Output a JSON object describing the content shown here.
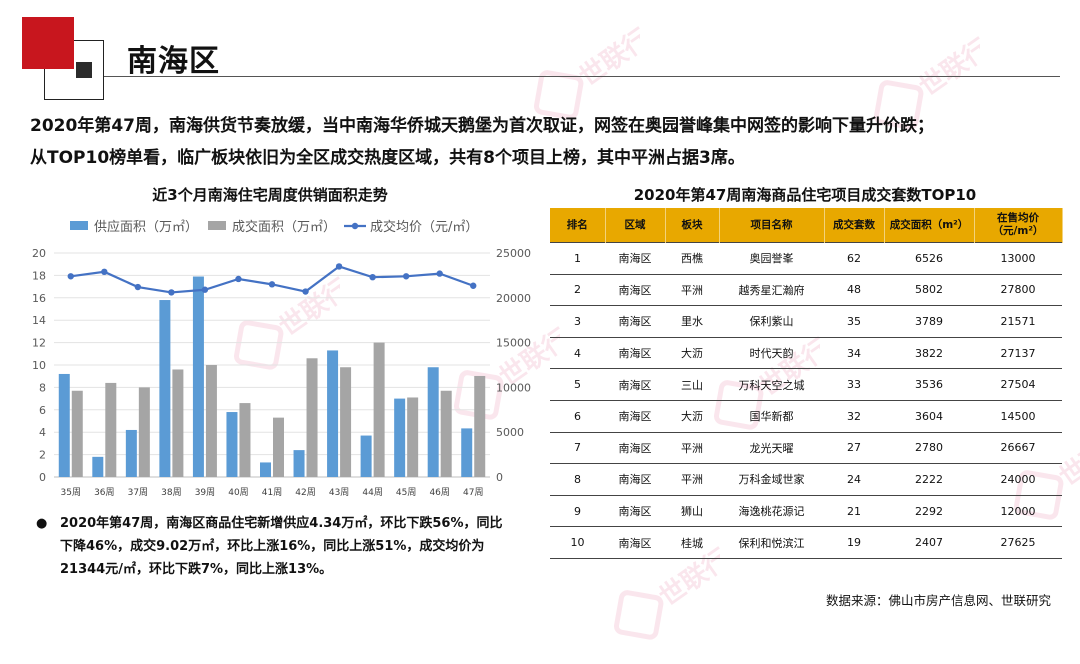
{
  "header": {
    "title": "南海区"
  },
  "summary": {
    "line1": "2020年第47周，南海供货节奏放缓，当中南海华侨城天鹅堡为首次取证，网签在奥园誉峰集中网签的影响下量升价跌；",
    "line2": "从TOP10榜单看，临广板块依旧为全区成交热度区域，共有8个项目上榜，其中平洲占据3席。"
  },
  "chart_title": "近3个月南海住宅周度供销面积走势",
  "chart_data": {
    "type": "bar",
    "categories": [
      "35周",
      "36周",
      "37周",
      "38周",
      "39周",
      "40周",
      "41周",
      "42周",
      "43周",
      "44周",
      "45周",
      "46周",
      "47周"
    ],
    "series": [
      {
        "name": "供应面积（万㎡）",
        "kind": "bar",
        "axis": "left",
        "color": "#5b9bd5",
        "values": [
          9.2,
          1.8,
          4.2,
          15.8,
          17.9,
          5.8,
          1.3,
          2.4,
          11.3,
          3.7,
          7.0,
          9.8,
          4.34
        ]
      },
      {
        "name": "成交面积（万㎡）",
        "kind": "bar",
        "axis": "left",
        "color": "#a5a5a5",
        "values": [
          7.7,
          8.4,
          8.0,
          9.6,
          10.0,
          6.6,
          5.3,
          10.6,
          9.8,
          12.0,
          7.1,
          7.7,
          9.02
        ]
      },
      {
        "name": "成交均价（元/㎡）",
        "kind": "line",
        "axis": "right",
        "color": "#4472c4",
        "values": [
          22400,
          22900,
          21200,
          20600,
          20900,
          22100,
          21500,
          20700,
          23500,
          22300,
          22400,
          22700,
          21344
        ]
      }
    ],
    "y_left": {
      "min": 0,
      "max": 20,
      "ticks": [
        0,
        2,
        4,
        6,
        8,
        10,
        12,
        14,
        16,
        18,
        20
      ]
    },
    "y_right": {
      "min": 0,
      "max": 25000,
      "ticks": [
        0,
        5000,
        10000,
        15000,
        20000,
        25000
      ]
    },
    "legend_position": "top",
    "grid": true
  },
  "bullet": {
    "text": "2020年第47周，南海区商品住宅新增供应4.34万㎡，环比下跌56%，同比下降46%，成交9.02万㎡，环比上涨16%，同比上涨51%，成交均价为21344元/㎡，环比下跌7%，同比上涨13%。"
  },
  "table": {
    "title": "2020年第47周南海商品住宅项目成交套数TOP10",
    "headers": [
      "排名",
      "区域",
      "板块",
      "项目名称",
      "成交套数",
      "成交面积（m²）",
      "在售均价（元/m²）"
    ],
    "rows": [
      [
        "1",
        "南海区",
        "西樵",
        "奥园誉峯",
        "62",
        "6526",
        "13000"
      ],
      [
        "2",
        "南海区",
        "平洲",
        "越秀星汇瀚府",
        "48",
        "5802",
        "27800"
      ],
      [
        "3",
        "南海区",
        "里水",
        "保利紫山",
        "35",
        "3789",
        "21571"
      ],
      [
        "4",
        "南海区",
        "大沥",
        "时代天韵",
        "34",
        "3822",
        "27137"
      ],
      [
        "5",
        "南海区",
        "三山",
        "万科天空之城",
        "33",
        "3536",
        "27504"
      ],
      [
        "6",
        "南海区",
        "大沥",
        "国华新都",
        "32",
        "3604",
        "14500"
      ],
      [
        "7",
        "南海区",
        "平洲",
        "龙光天曜",
        "27",
        "2780",
        "26667"
      ],
      [
        "8",
        "南海区",
        "平洲",
        "万科金域世家",
        "24",
        "2222",
        "24000"
      ],
      [
        "9",
        "南海区",
        "狮山",
        "海逸桃花源记",
        "21",
        "2292",
        "12000"
      ],
      [
        "10",
        "南海区",
        "桂城",
        "保利和悦滨江",
        "19",
        "2407",
        "27625"
      ]
    ],
    "header_color": "#e8a800"
  },
  "source": "数据来源：佛山市房产信息网、世联研究",
  "watermark_text": "世联行"
}
